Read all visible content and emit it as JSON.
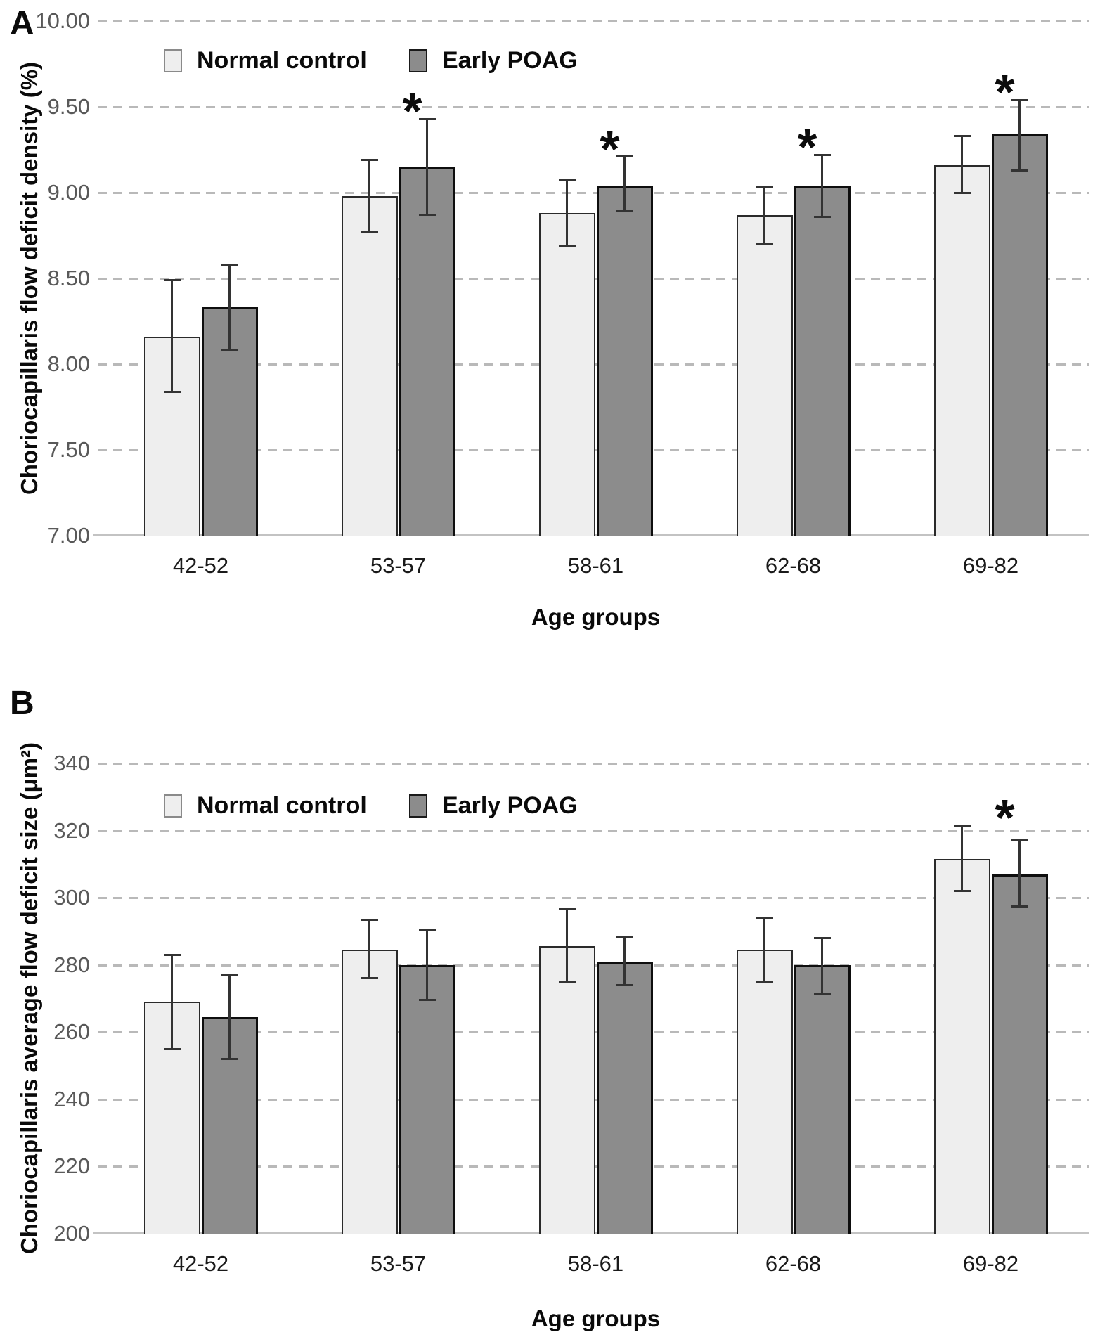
{
  "chart_data": [
    {
      "type": "bar",
      "panel_letter": "A",
      "ylabel": "Choriocapillaris flow deficit density (%)",
      "xlabel": "Age groups",
      "categories": [
        "42-52",
        "53-57",
        "58-61",
        "62-68",
        "69-82"
      ],
      "y_ticks": [
        "10.00",
        "9.50",
        "9.00",
        "8.50",
        "8.00",
        "7.50",
        "7.00"
      ],
      "ylim": [
        7.0,
        10.0
      ],
      "grid": "dashed-horizontal",
      "legend_position": "top-left-inside",
      "series": [
        {
          "name": "Normal control",
          "fill": "#eeeeee",
          "border": "#2a2a2a",
          "swatch_border": "#8a8a8a",
          "values": [
            8.16,
            8.98,
            8.88,
            8.87,
            9.16
          ],
          "err_low": [
            7.84,
            8.77,
            8.69,
            8.7,
            9.0
          ],
          "err_high": [
            8.49,
            9.19,
            9.07,
            9.03,
            9.33
          ]
        },
        {
          "name": "Early POAG",
          "fill": "#8c8c8c",
          "border": "#0e0e0e",
          "swatch_border": "#1a1a1a",
          "values": [
            8.33,
            9.15,
            9.04,
            9.04,
            9.34
          ],
          "err_low": [
            8.08,
            8.87,
            8.89,
            8.86,
            9.13
          ],
          "err_high": [
            8.58,
            9.43,
            9.21,
            9.22,
            9.54
          ]
        }
      ],
      "significant": [
        false,
        true,
        true,
        true,
        true
      ],
      "sig_symbol": "*",
      "error_color": "#333333",
      "gridline_color": "#b9b9b9"
    },
    {
      "type": "bar",
      "panel_letter": "B",
      "ylabel": "Choriocapillaris average flow deficit size (μm²)",
      "xlabel": "Age groups",
      "categories": [
        "42-52",
        "53-57",
        "58-61",
        "62-68",
        "69-82"
      ],
      "y_ticks": [
        "340",
        "320",
        "300",
        "280",
        "260",
        "240",
        "220",
        "200"
      ],
      "ylim": [
        200,
        340
      ],
      "grid": "dashed-horizontal",
      "legend_position": "top-left-inside",
      "series": [
        {
          "name": "Normal control",
          "fill": "#eeeeee",
          "border": "#2a2a2a",
          "swatch_border": "#8a8a8a",
          "values": [
            269,
            284.5,
            285.5,
            284.5,
            311.5
          ],
          "err_low": [
            255,
            276,
            275,
            275,
            302
          ],
          "err_high": [
            283,
            293.5,
            296.5,
            294,
            321.5
          ]
        },
        {
          "name": "Early POAG",
          "fill": "#8c8c8c",
          "border": "#0e0e0e",
          "swatch_border": "#1a1a1a",
          "values": [
            264.5,
            280,
            281,
            280,
            307
          ],
          "err_low": [
            252,
            269.5,
            274,
            271.5,
            297.5
          ],
          "err_high": [
            277,
            290.5,
            288.5,
            288,
            317
          ]
        }
      ],
      "significant": [
        false,
        false,
        false,
        false,
        true
      ],
      "sig_symbol": "*",
      "error_color": "#333333",
      "gridline_color": "#b9b9b9"
    }
  ]
}
